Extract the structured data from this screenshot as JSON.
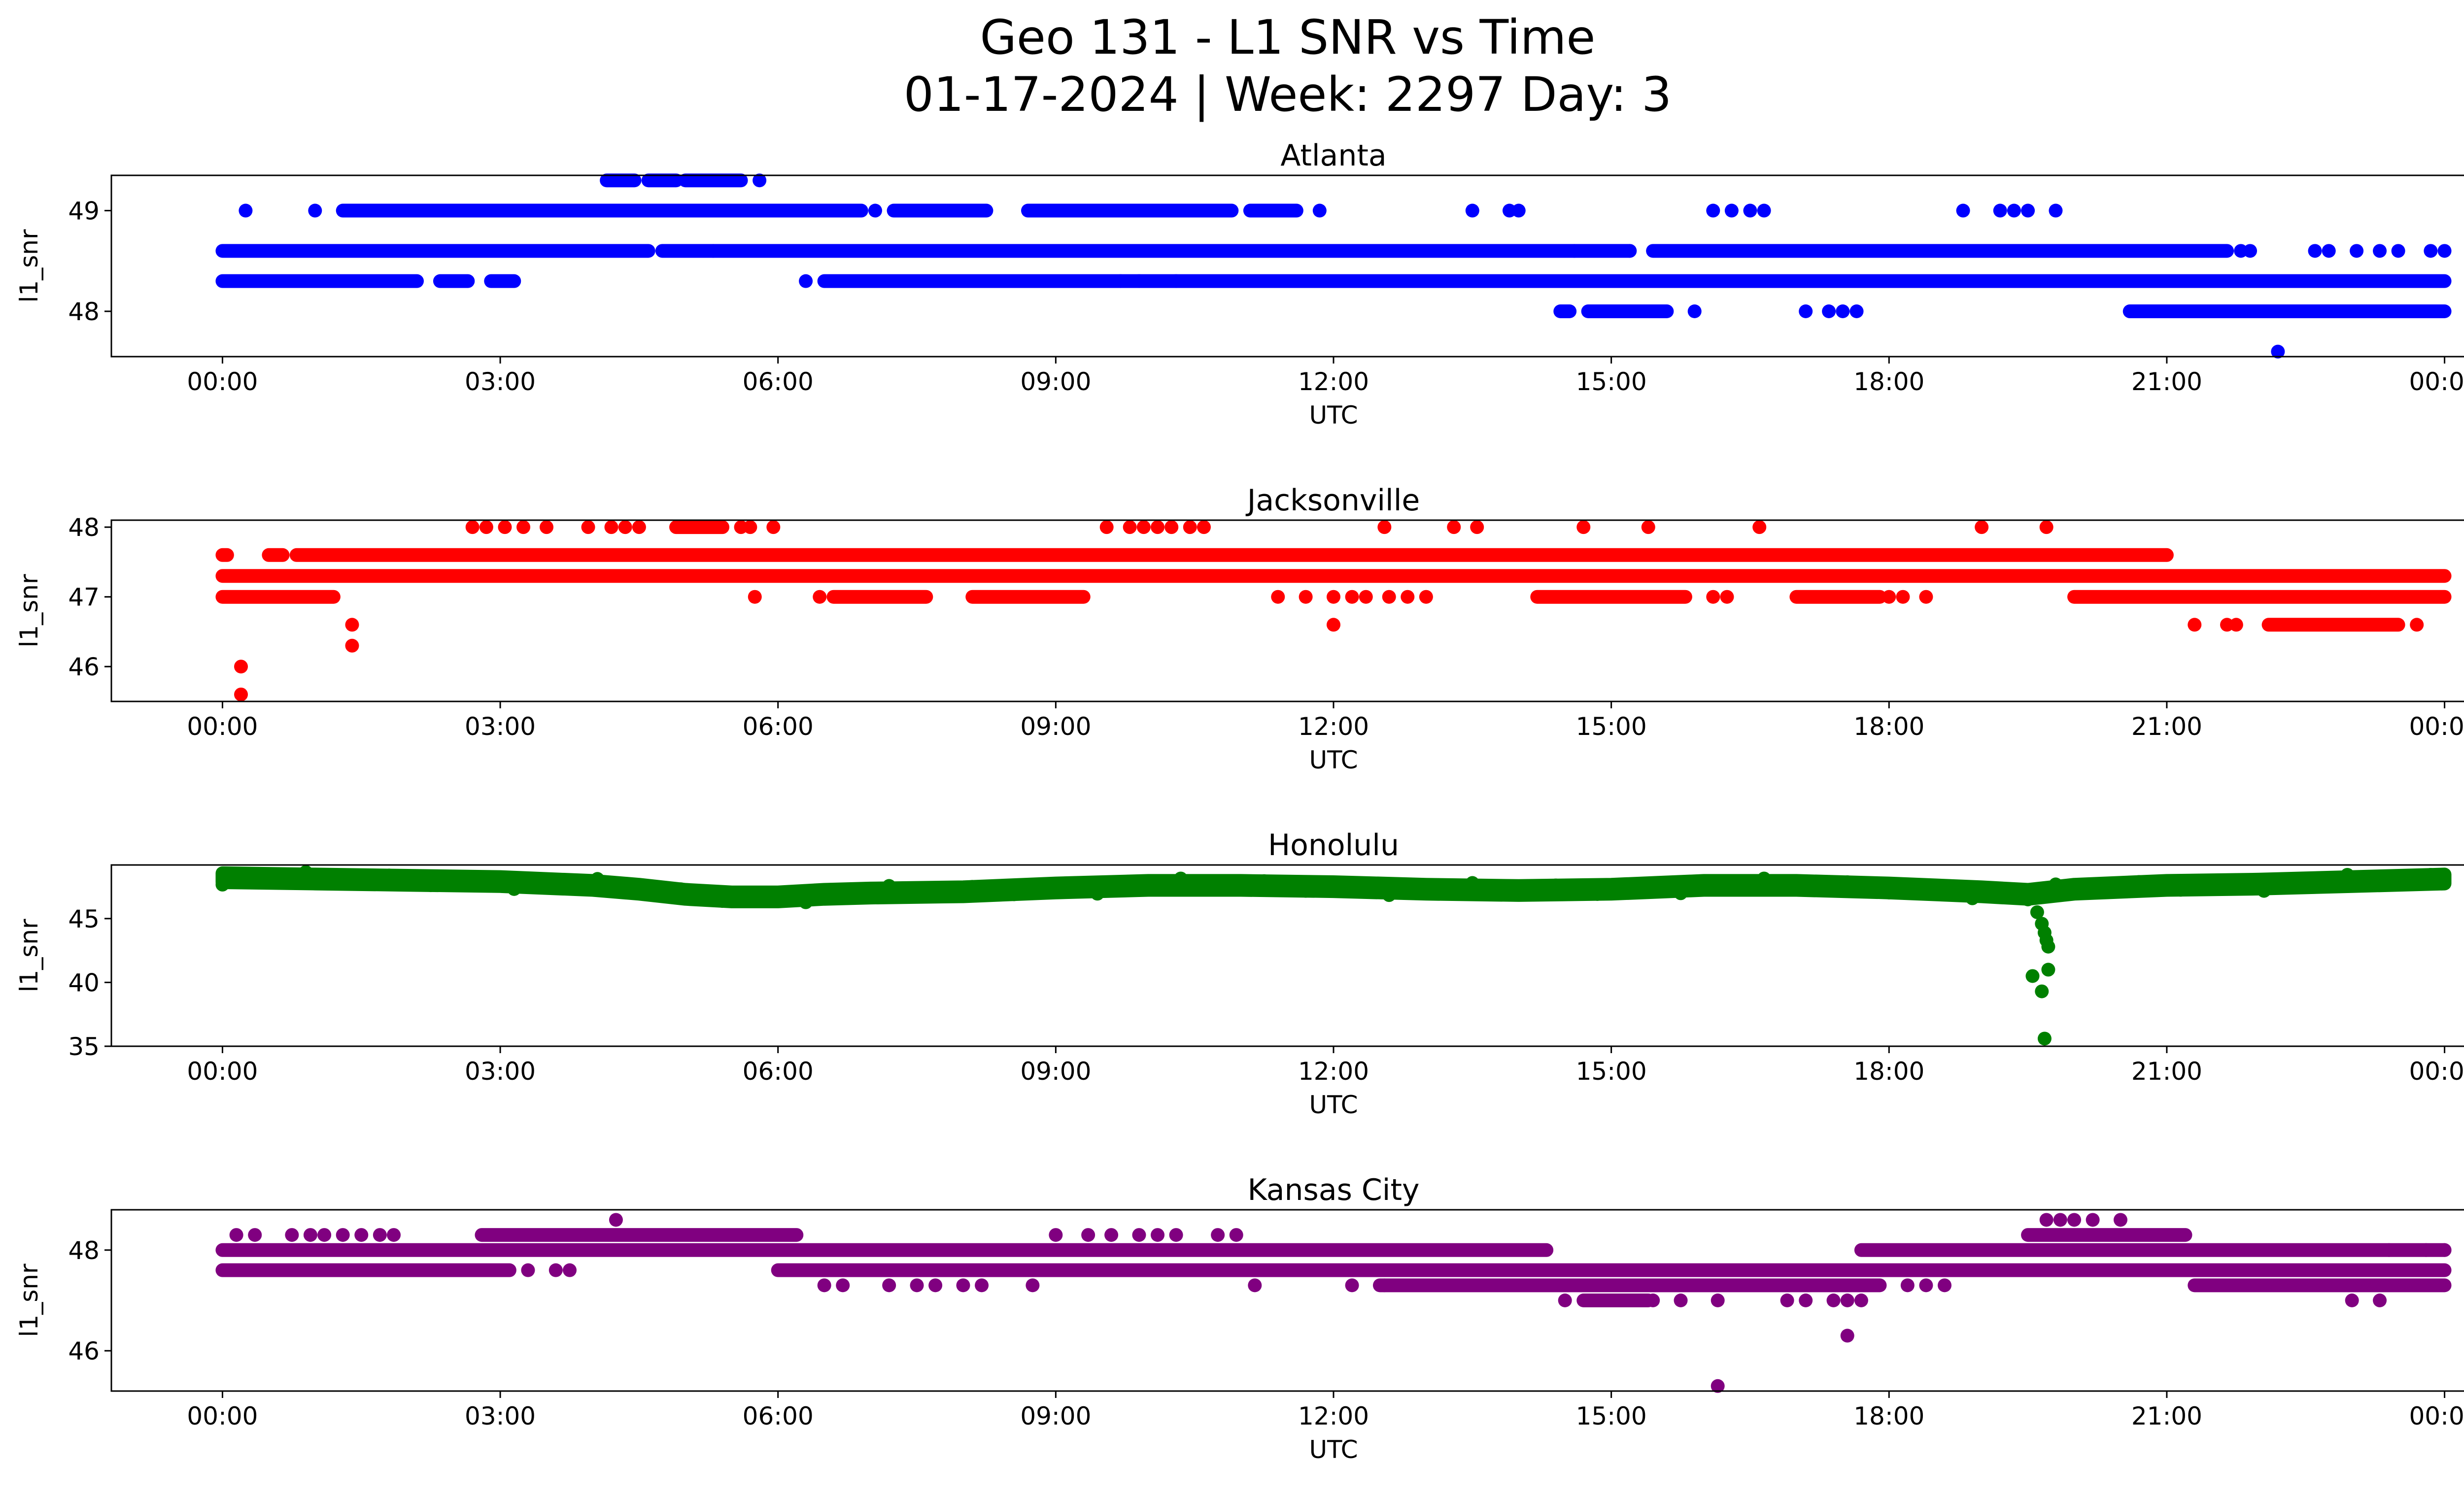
{
  "title": {
    "line1": "Geo 131 - L1 SNR vs Time",
    "line2": "01-17-2024 | Week: 2297 Day: 3"
  },
  "chart_data": [
    {
      "type": "scatter",
      "title": "Atlanta",
      "xlabel": "UTC",
      "ylabel": "l1_snr",
      "color": "#0000ff",
      "x_ticks": [
        "00:00",
        "03:00",
        "06:00",
        "09:00",
        "12:00",
        "15:00",
        "18:00",
        "21:00",
        "00:00"
      ],
      "y_ticks": [
        48,
        49
      ],
      "xlim_hours": [
        -1.2,
        25.2
      ],
      "ylim": [
        47.55,
        49.35
      ],
      "segments": [
        {
          "y": 48.6,
          "ranges": [
            [
              0.0,
              4.6
            ],
            [
              4.75,
              5.3
            ],
            [
              5.3,
              14.6
            ],
            [
              14.6,
              15.2
            ],
            [
              15.45,
              21.65
            ]
          ]
        },
        {
          "y": 48.3,
          "ranges": [
            [
              0.0,
              2.1
            ],
            [
              2.35,
              2.65
            ],
            [
              2.9,
              3.15
            ],
            [
              6.5,
              24.0
            ]
          ]
        },
        {
          "y": 49.0,
          "ranges": [
            [
              1.3,
              6.9
            ],
            [
              7.25,
              7.6
            ],
            [
              7.6,
              8.25
            ],
            [
              8.7,
              10.9
            ],
            [
              11.1,
              11.6
            ]
          ]
        },
        {
          "y": 49.3,
          "ranges": [
            [
              4.15,
              4.45
            ],
            [
              4.6,
              4.9
            ],
            [
              5.0,
              5.6
            ]
          ]
        },
        {
          "y": 48.0,
          "ranges": [
            [
              14.45,
              14.55
            ],
            [
              14.75,
              15.6
            ],
            [
              20.6,
              24.0
            ]
          ]
        }
      ],
      "points": [
        {
          "x": 0.25,
          "y": 49.0
        },
        {
          "x": 1.0,
          "y": 49.0
        },
        {
          "x": 5.8,
          "y": 49.3
        },
        {
          "x": 6.3,
          "y": 48.3
        },
        {
          "x": 7.05,
          "y": 49.0
        },
        {
          "x": 9.7,
          "y": 48.3
        },
        {
          "x": 9.9,
          "y": 48.3
        },
        {
          "x": 10.3,
          "y": 48.3
        },
        {
          "x": 11.85,
          "y": 49.0
        },
        {
          "x": 13.5,
          "y": 49.0
        },
        {
          "x": 13.9,
          "y": 49.0
        },
        {
          "x": 14.0,
          "y": 49.0
        },
        {
          "x": 15.2,
          "y": 48.6
        },
        {
          "x": 15.9,
          "y": 48.0
        },
        {
          "x": 16.1,
          "y": 49.0
        },
        {
          "x": 16.3,
          "y": 49.0
        },
        {
          "x": 16.5,
          "y": 49.0
        },
        {
          "x": 16.65,
          "y": 49.0
        },
        {
          "x": 17.1,
          "y": 48.0
        },
        {
          "x": 17.35,
          "y": 48.0
        },
        {
          "x": 17.5,
          "y": 48.0
        },
        {
          "x": 17.65,
          "y": 48.0
        },
        {
          "x": 18.8,
          "y": 49.0
        },
        {
          "x": 19.2,
          "y": 49.0
        },
        {
          "x": 19.35,
          "y": 49.0
        },
        {
          "x": 19.5,
          "y": 49.0
        },
        {
          "x": 19.8,
          "y": 49.0
        },
        {
          "x": 21.8,
          "y": 48.6
        },
        {
          "x": 21.9,
          "y": 48.6
        },
        {
          "x": 22.2,
          "y": 47.6
        },
        {
          "x": 22.6,
          "y": 48.6
        },
        {
          "x": 22.75,
          "y": 48.6
        },
        {
          "x": 23.05,
          "y": 48.6
        },
        {
          "x": 23.3,
          "y": 48.6
        },
        {
          "x": 23.5,
          "y": 48.6
        },
        {
          "x": 23.85,
          "y": 48.6
        },
        {
          "x": 24.0,
          "y": 48.6
        }
      ]
    },
    {
      "type": "scatter",
      "title": "Jacksonville",
      "xlabel": "UTC",
      "ylabel": "l1_snr",
      "color": "#ff0000",
      "x_ticks": [
        "00:00",
        "03:00",
        "06:00",
        "09:00",
        "12:00",
        "15:00",
        "18:00",
        "21:00",
        "00:00"
      ],
      "y_ticks": [
        46,
        47,
        48
      ],
      "xlim_hours": [
        -1.2,
        25.2
      ],
      "ylim": [
        45.5,
        48.1
      ],
      "segments": [
        {
          "y": 47.3,
          "ranges": [
            [
              0.0,
              24.0
            ]
          ]
        },
        {
          "y": 47.0,
          "ranges": [
            [
              0.0,
              1.2
            ],
            [
              6.6,
              7.6
            ],
            [
              8.1,
              9.3
            ],
            [
              14.2,
              15.8
            ],
            [
              17.0,
              17.9
            ],
            [
              20.0,
              24.0
            ]
          ]
        },
        {
          "y": 47.6,
          "ranges": [
            [
              0.0,
              0.05
            ],
            [
              0.5,
              0.65
            ],
            [
              0.8,
              21.0
            ]
          ]
        },
        {
          "y": 46.6,
          "ranges": [
            [
              22.1,
              23.5
            ]
          ]
        },
        {
          "y": 48.0,
          "ranges": [
            [
              4.9,
              5.4
            ]
          ]
        }
      ],
      "points": [
        {
          "x": 0.2,
          "y": 46.0
        },
        {
          "x": 0.2,
          "y": 45.6
        },
        {
          "x": 1.4,
          "y": 46.6
        },
        {
          "x": 1.4,
          "y": 46.3
        },
        {
          "x": 2.7,
          "y": 48.0
        },
        {
          "x": 2.85,
          "y": 48.0
        },
        {
          "x": 3.05,
          "y": 48.0
        },
        {
          "x": 3.25,
          "y": 48.0
        },
        {
          "x": 3.5,
          "y": 48.0
        },
        {
          "x": 3.95,
          "y": 48.0
        },
        {
          "x": 4.2,
          "y": 48.0
        },
        {
          "x": 4.35,
          "y": 48.0
        },
        {
          "x": 4.5,
          "y": 48.0
        },
        {
          "x": 5.6,
          "y": 48.0
        },
        {
          "x": 5.7,
          "y": 48.0
        },
        {
          "x": 5.75,
          "y": 47.0
        },
        {
          "x": 5.95,
          "y": 48.0
        },
        {
          "x": 6.45,
          "y": 47.0
        },
        {
          "x": 9.55,
          "y": 48.0
        },
        {
          "x": 9.8,
          "y": 48.0
        },
        {
          "x": 9.95,
          "y": 48.0
        },
        {
          "x": 10.1,
          "y": 48.0
        },
        {
          "x": 10.25,
          "y": 48.0
        },
        {
          "x": 10.45,
          "y": 48.0
        },
        {
          "x": 10.6,
          "y": 48.0
        },
        {
          "x": 11.4,
          "y": 47.0
        },
        {
          "x": 11.7,
          "y": 47.0
        },
        {
          "x": 12.0,
          "y": 47.0
        },
        {
          "x": 12.0,
          "y": 46.6
        },
        {
          "x": 12.2,
          "y": 47.0
        },
        {
          "x": 12.35,
          "y": 47.0
        },
        {
          "x": 12.55,
          "y": 48.0
        },
        {
          "x": 12.6,
          "y": 47.0
        },
        {
          "x": 12.8,
          "y": 47.0
        },
        {
          "x": 13.0,
          "y": 47.0
        },
        {
          "x": 13.3,
          "y": 48.0
        },
        {
          "x": 13.55,
          "y": 48.0
        },
        {
          "x": 14.7,
          "y": 48.0
        },
        {
          "x": 15.4,
          "y": 48.0
        },
        {
          "x": 16.1,
          "y": 47.0
        },
        {
          "x": 16.25,
          "y": 47.0
        },
        {
          "x": 16.6,
          "y": 48.0
        },
        {
          "x": 18.0,
          "y": 47.0
        },
        {
          "x": 18.15,
          "y": 47.0
        },
        {
          "x": 18.4,
          "y": 47.0
        },
        {
          "x": 19.0,
          "y": 48.0
        },
        {
          "x": 19.7,
          "y": 48.0
        },
        {
          "x": 21.3,
          "y": 46.6
        },
        {
          "x": 21.65,
          "y": 46.6
        },
        {
          "x": 21.75,
          "y": 46.6
        },
        {
          "x": 23.7,
          "y": 46.6
        }
      ]
    },
    {
      "type": "scatter",
      "title": "Honolulu",
      "xlabel": "UTC",
      "ylabel": "l1_snr",
      "color": "#008000",
      "x_ticks": [
        "00:00",
        "03:00",
        "06:00",
        "09:00",
        "12:00",
        "15:00",
        "18:00",
        "21:00",
        "00:00"
      ],
      "y_ticks": [
        35,
        40,
        45
      ],
      "xlim_hours": [
        -1.2,
        25.2
      ],
      "ylim": [
        35.0,
        49.2
      ],
      "profile": [
        [
          0.0,
          48.2
        ],
        [
          1.0,
          48.1
        ],
        [
          2.0,
          48.0
        ],
        [
          3.0,
          47.9
        ],
        [
          4.0,
          47.6
        ],
        [
          4.5,
          47.3
        ],
        [
          5.0,
          46.9
        ],
        [
          5.5,
          46.7
        ],
        [
          6.0,
          46.7
        ],
        [
          6.5,
          46.9
        ],
        [
          7.0,
          47.0
        ],
        [
          8.0,
          47.1
        ],
        [
          9.0,
          47.4
        ],
        [
          10.0,
          47.6
        ],
        [
          11.0,
          47.6
        ],
        [
          12.0,
          47.5
        ],
        [
          13.0,
          47.3
        ],
        [
          14.0,
          47.2
        ],
        [
          15.0,
          47.3
        ],
        [
          16.0,
          47.6
        ],
        [
          17.0,
          47.6
        ],
        [
          18.0,
          47.4
        ],
        [
          19.0,
          47.1
        ],
        [
          19.5,
          46.9
        ],
        [
          20.0,
          47.3
        ],
        [
          21.0,
          47.6
        ],
        [
          22.0,
          47.7
        ],
        [
          23.0,
          47.9
        ],
        [
          24.0,
          48.1
        ]
      ],
      "points": [
        {
          "x": 19.5,
          "y": 46.5
        },
        {
          "x": 19.6,
          "y": 45.5
        },
        {
          "x": 19.65,
          "y": 44.6
        },
        {
          "x": 19.68,
          "y": 43.9
        },
        {
          "x": 19.7,
          "y": 43.3
        },
        {
          "x": 19.72,
          "y": 42.8
        },
        {
          "x": 19.55,
          "y": 40.5
        },
        {
          "x": 19.72,
          "y": 41.0
        },
        {
          "x": 19.65,
          "y": 39.3
        },
        {
          "x": 19.68,
          "y": 35.6
        }
      ]
    },
    {
      "type": "scatter",
      "title": "Kansas City",
      "xlabel": "UTC",
      "ylabel": "l1_snr",
      "color": "#800080",
      "x_ticks": [
        "00:00",
        "03:00",
        "06:00",
        "09:00",
        "12:00",
        "15:00",
        "18:00",
        "21:00",
        "00:00"
      ],
      "y_ticks": [
        46,
        48
      ],
      "xlim_hours": [
        -1.2,
        25.2
      ],
      "ylim": [
        45.2,
        48.8
      ],
      "segments": [
        {
          "y": 48.0,
          "ranges": [
            [
              0.0,
              14.3
            ],
            [
              17.7,
              24.0
            ]
          ]
        },
        {
          "y": 47.6,
          "ranges": [
            [
              0.0,
              3.1
            ],
            [
              6.0,
              24.0
            ]
          ]
        },
        {
          "y": 48.3,
          "ranges": [
            [
              2.8,
              6.2
            ],
            [
              19.5,
              21.2
            ]
          ]
        },
        {
          "y": 47.3,
          "ranges": [
            [
              12.5,
              17.9
            ],
            [
              21.3,
              24.0
            ]
          ]
        },
        {
          "y": 47.0,
          "ranges": [
            [
              14.7,
              15.4
            ]
          ]
        }
      ],
      "points": [
        {
          "x": 0.15,
          "y": 48.3
        },
        {
          "x": 0.35,
          "y": 48.3
        },
        {
          "x": 0.75,
          "y": 48.3
        },
        {
          "x": 0.95,
          "y": 48.3
        },
        {
          "x": 1.1,
          "y": 48.3
        },
        {
          "x": 1.3,
          "y": 48.3
        },
        {
          "x": 1.5,
          "y": 48.3
        },
        {
          "x": 1.7,
          "y": 48.3
        },
        {
          "x": 1.85,
          "y": 48.3
        },
        {
          "x": 3.3,
          "y": 47.6
        },
        {
          "x": 3.6,
          "y": 47.6
        },
        {
          "x": 3.75,
          "y": 47.6
        },
        {
          "x": 4.25,
          "y": 48.6
        },
        {
          "x": 6.5,
          "y": 47.3
        },
        {
          "x": 6.7,
          "y": 47.3
        },
        {
          "x": 7.2,
          "y": 47.3
        },
        {
          "x": 7.5,
          "y": 47.3
        },
        {
          "x": 7.7,
          "y": 47.3
        },
        {
          "x": 8.0,
          "y": 47.3
        },
        {
          "x": 8.2,
          "y": 47.3
        },
        {
          "x": 8.75,
          "y": 47.3
        },
        {
          "x": 9.0,
          "y": 48.3
        },
        {
          "x": 9.35,
          "y": 48.3
        },
        {
          "x": 9.6,
          "y": 48.3
        },
        {
          "x": 9.9,
          "y": 48.3
        },
        {
          "x": 10.1,
          "y": 48.3
        },
        {
          "x": 10.3,
          "y": 48.3
        },
        {
          "x": 10.75,
          "y": 48.3
        },
        {
          "x": 10.95,
          "y": 48.3
        },
        {
          "x": 11.15,
          "y": 47.3
        },
        {
          "x": 12.2,
          "y": 47.3
        },
        {
          "x": 12.55,
          "y": 47.3
        },
        {
          "x": 14.5,
          "y": 47.0
        },
        {
          "x": 15.2,
          "y": 47.0
        },
        {
          "x": 15.45,
          "y": 47.0
        },
        {
          "x": 15.75,
          "y": 47.0
        },
        {
          "x": 16.15,
          "y": 47.0
        },
        {
          "x": 16.15,
          "y": 45.3
        },
        {
          "x": 16.9,
          "y": 47.0
        },
        {
          "x": 17.1,
          "y": 47.0
        },
        {
          "x": 17.4,
          "y": 47.0
        },
        {
          "x": 17.55,
          "y": 47.0
        },
        {
          "x": 17.55,
          "y": 46.3
        },
        {
          "x": 17.7,
          "y": 47.0
        },
        {
          "x": 18.2,
          "y": 47.3
        },
        {
          "x": 18.4,
          "y": 47.3
        },
        {
          "x": 18.6,
          "y": 47.3
        },
        {
          "x": 19.7,
          "y": 48.6
        },
        {
          "x": 19.85,
          "y": 48.6
        },
        {
          "x": 20.0,
          "y": 48.6
        },
        {
          "x": 20.2,
          "y": 48.6
        },
        {
          "x": 20.5,
          "y": 48.6
        },
        {
          "x": 23.0,
          "y": 47.0
        },
        {
          "x": 23.3,
          "y": 47.0
        },
        {
          "x": 23.4,
          "y": 48.0
        },
        {
          "x": 23.8,
          "y": 48.0
        },
        {
          "x": 24.0,
          "y": 48.0
        }
      ]
    }
  ]
}
